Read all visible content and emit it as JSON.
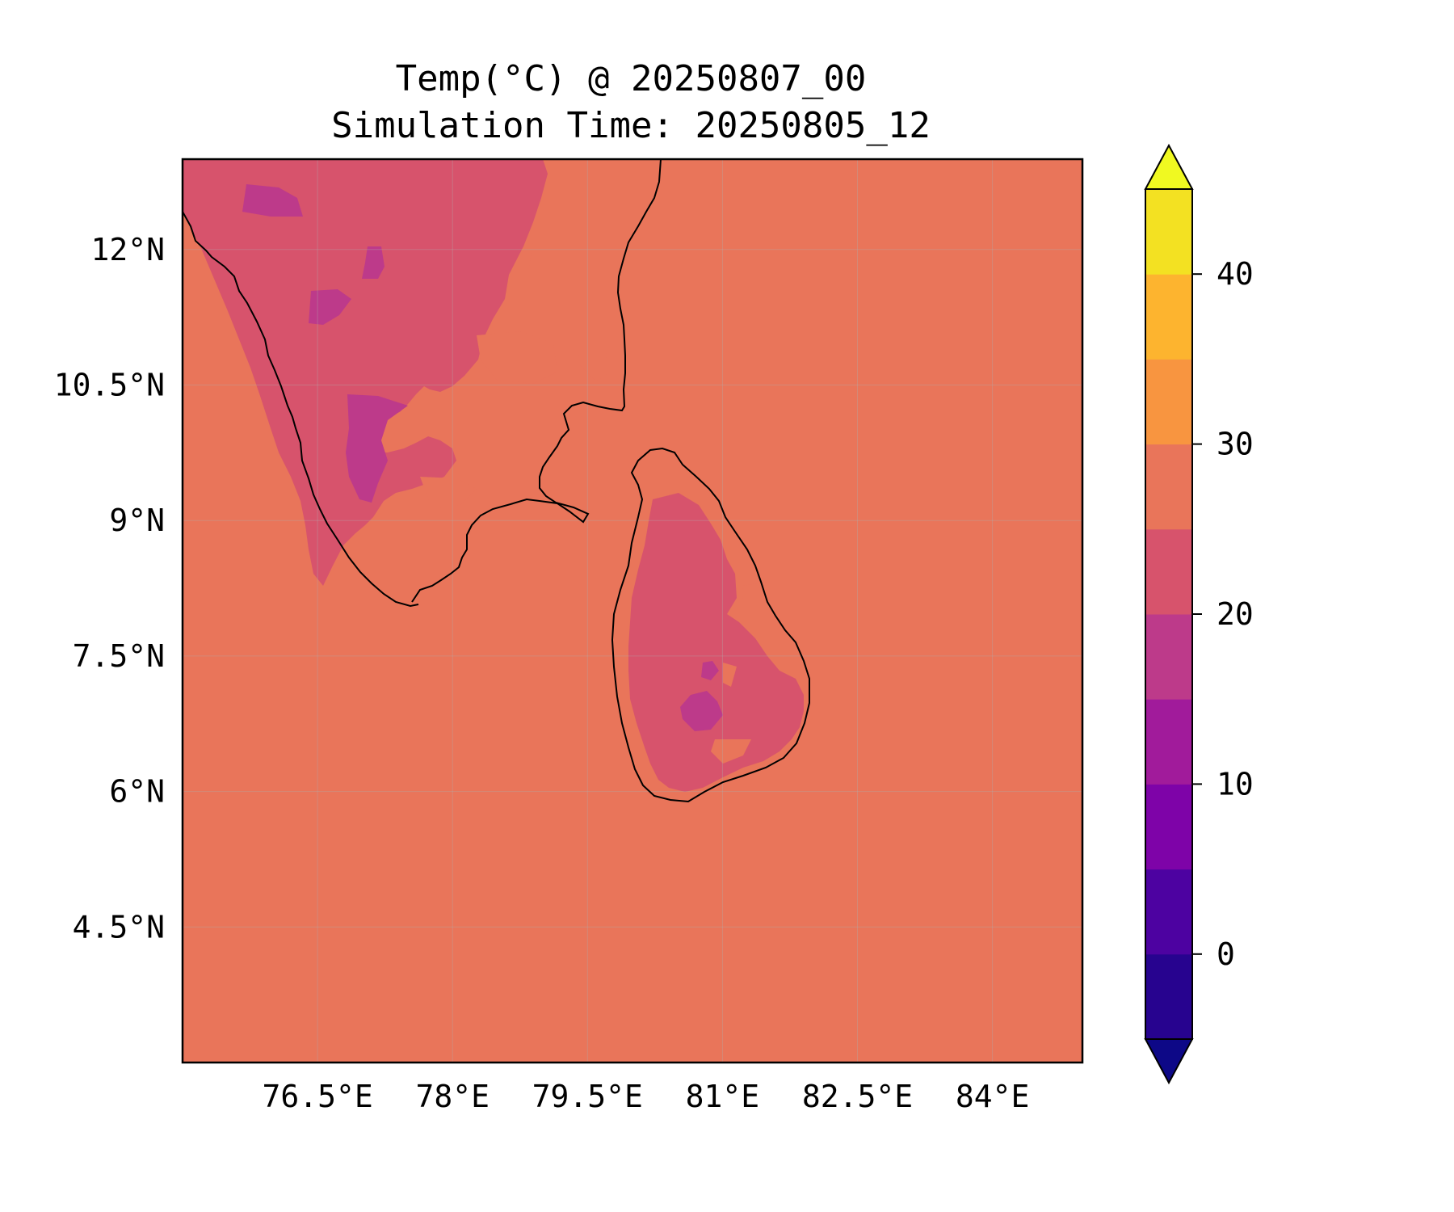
{
  "map": {
    "title_line1": "Temp(°C) @ 20250807_00",
    "title_line2": "Simulation Time: 20250805_12",
    "extent": {
      "lon_min": 75.0,
      "lon_max": 85.0,
      "lat_min": 3.0,
      "lat_max": 13.0
    },
    "x_ticks": [
      {
        "lon": 76.5,
        "label": "76.5°E"
      },
      {
        "lon": 78.0,
        "label": "78°E"
      },
      {
        "lon": 79.5,
        "label": "79.5°E"
      },
      {
        "lon": 81.0,
        "label": "81°E"
      },
      {
        "lon": 82.5,
        "label": "82.5°E"
      },
      {
        "lon": 84.0,
        "label": "84°E"
      }
    ],
    "y_ticks": [
      {
        "lat": 12.0,
        "label": "12°N"
      },
      {
        "lat": 10.5,
        "label": "10.5°N"
      },
      {
        "lat": 9.0,
        "label": "9°N"
      },
      {
        "lat": 7.5,
        "label": "7.5°N"
      },
      {
        "lat": 6.0,
        "label": "6°N"
      },
      {
        "lat": 4.5,
        "label": "4.5°N"
      }
    ],
    "gridlines": true,
    "background_fill": "#e9755a",
    "fill_colors": {
      "band_25_30": "#e9755a",
      "band_20_25": "#d7536c",
      "band_15_20": "#bd3a8a"
    }
  },
  "colorbar": {
    "levels": [
      -5,
      0,
      5,
      10,
      15,
      20,
      25,
      30,
      35,
      40,
      45
    ],
    "colors": [
      "#27038f",
      "#4d02a1",
      "#7e03a8",
      "#a11b9b",
      "#bd3a8a",
      "#d7536c",
      "#e9755a",
      "#f89540",
      "#fdb42f",
      "#f3e122"
    ],
    "extend_min_color": "#0d0887",
    "extend_max_color": "#f0f921",
    "ticks": [
      {
        "value": 0,
        "label": "0"
      },
      {
        "value": 10,
        "label": "10"
      },
      {
        "value": 20,
        "label": "20"
      },
      {
        "value": 30,
        "label": "30"
      },
      {
        "value": 40,
        "label": "40"
      }
    ]
  }
}
